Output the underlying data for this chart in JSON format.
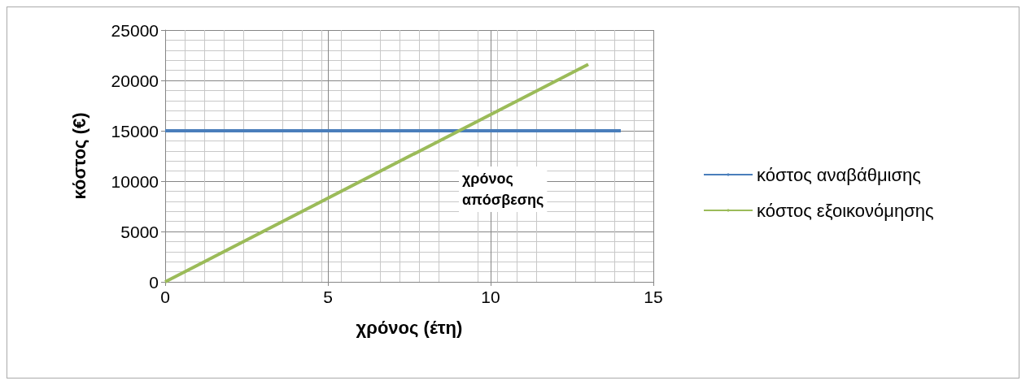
{
  "chart_data": {
    "type": "line",
    "xlabel": "χρόνος (έτη)",
    "ylabel": "κόστος (€)",
    "series": [
      {
        "name": "κόστος αναβάθμισης",
        "color": "#4a7ebb",
        "x": [
          0,
          14
        ],
        "values": [
          15000,
          15000
        ]
      },
      {
        "name": "κόστος εξοικονόμησης",
        "color": "#9bbb59",
        "x": [
          0,
          13
        ],
        "values": [
          0,
          21600
        ]
      }
    ],
    "xlim": [
      0,
      15
    ],
    "xticks": [
      0,
      5,
      10,
      15
    ],
    "ylim": [
      0,
      25000
    ],
    "yticks": [
      0,
      5000,
      10000,
      15000,
      20000,
      25000
    ],
    "grid": true,
    "legend": "right",
    "marker": "none",
    "line_style": "solid",
    "annotations": [
      "χρόνος απόσβεσης"
    ]
  }
}
